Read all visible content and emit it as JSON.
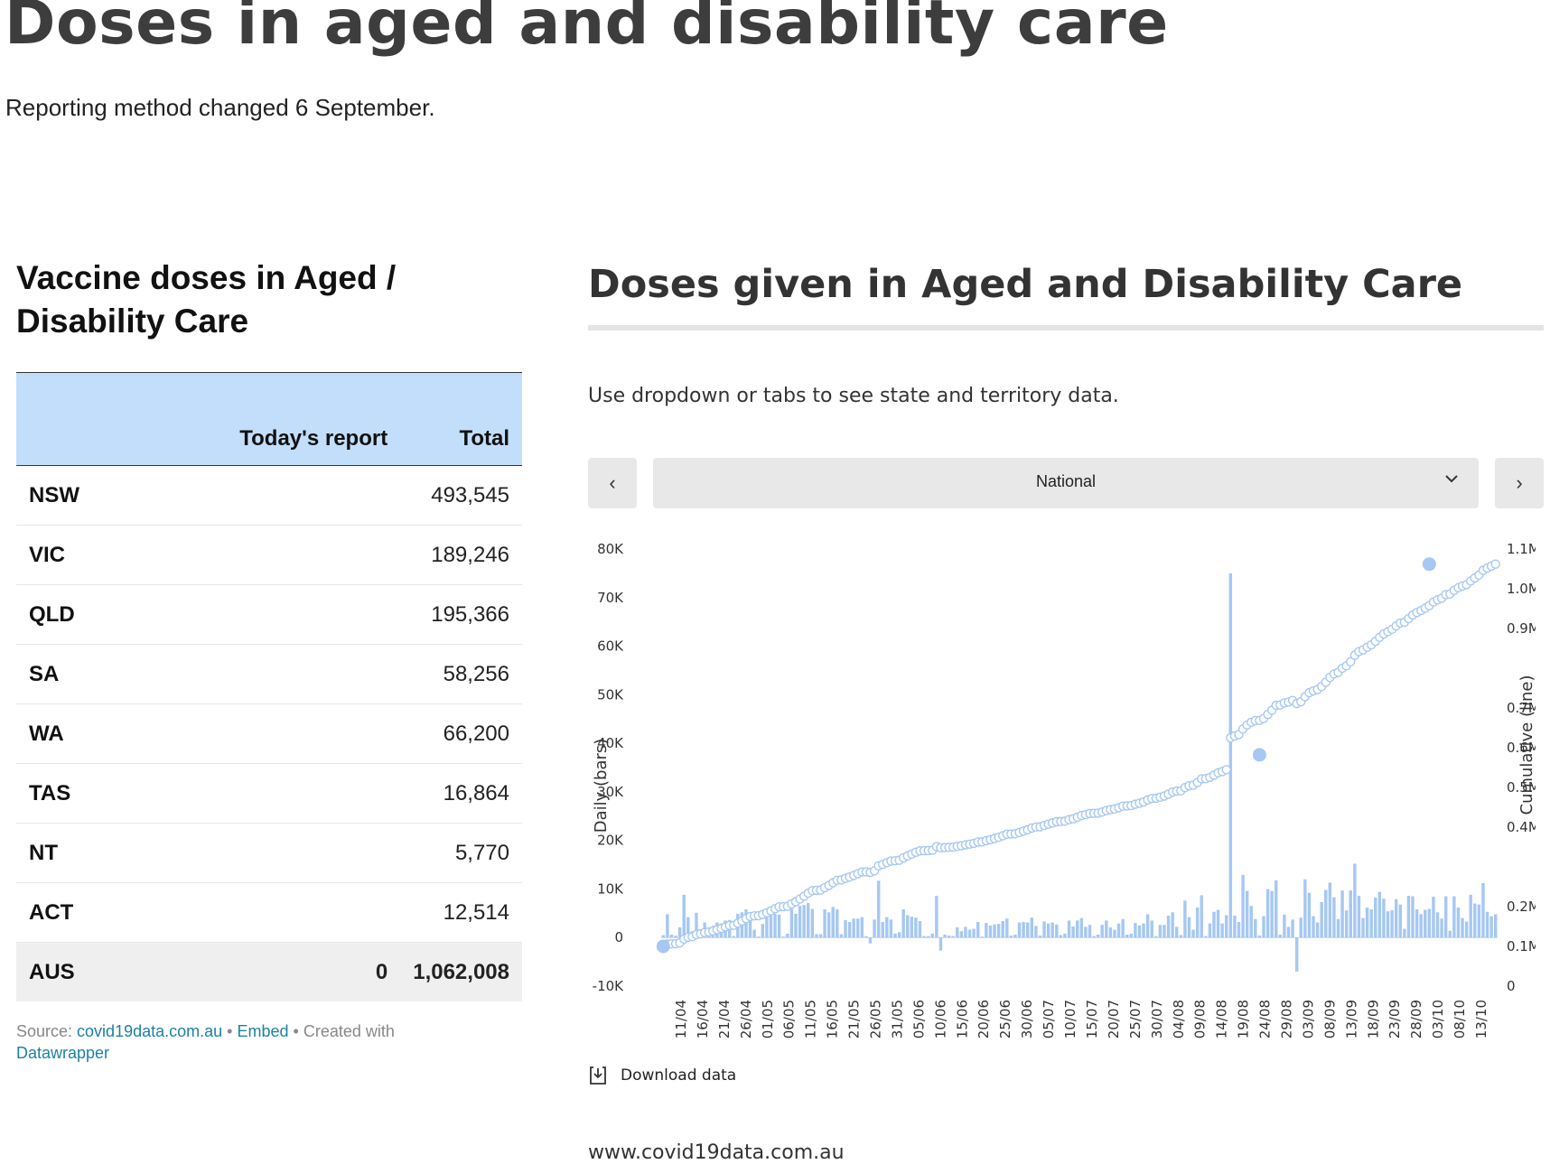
{
  "page": {
    "title": "Doses in aged and disability care",
    "subtitle": "Reporting method changed 6 September."
  },
  "table": {
    "title": "Vaccine doses in Aged / Disability Care",
    "headers": {
      "col1": "",
      "col2": "Today's report",
      "col3": "Total"
    },
    "rows": [
      {
        "state": "NSW",
        "today": "",
        "total": "493,545"
      },
      {
        "state": "VIC",
        "today": "",
        "total": "189,246"
      },
      {
        "state": "QLD",
        "today": "",
        "total": "195,366"
      },
      {
        "state": "SA",
        "today": "",
        "total": "58,256"
      },
      {
        "state": "WA",
        "today": "",
        "total": "66,200"
      },
      {
        "state": "TAS",
        "today": "",
        "total": "16,864"
      },
      {
        "state": "NT",
        "today": "",
        "total": "5,770"
      },
      {
        "state": "ACT",
        "today": "",
        "total": "12,514"
      },
      {
        "state": "AUS",
        "today": "0",
        "total": "1,062,008"
      }
    ],
    "source": {
      "prefix": "Source: ",
      "source_link": "covid19data.com.au",
      "sep1": " • ",
      "embed_link": "Embed",
      "sep2": " • Created with ",
      "tool_link": "Datawrapper"
    }
  },
  "chart": {
    "title": "Doses given in Aged and Disability Care",
    "instructions": "Use dropdown or tabs to see state and territory data.",
    "prev_label": "‹",
    "next_label": "›",
    "selector_value": "National",
    "download_label": "Download data",
    "footer_url": "www.covid19data.com.au"
  },
  "colors": {
    "bar": "#a6c8f2",
    "line_marker": "#a6c8f2",
    "header_bg": "#c3defb",
    "link": "#1d81a2"
  },
  "chart_data": {
    "type": "bar+line",
    "title": "Doses given in Aged and Disability Care",
    "ylabel_left": "Daily (bars)",
    "ylabel_right": "Cumulative (line)",
    "ylim_left": [
      -10000,
      80000
    ],
    "ylim_right": [
      0,
      1100000
    ],
    "left_ticks": [
      {
        "value": 80000,
        "label": "80K"
      },
      {
        "value": 70000,
        "label": "70K"
      },
      {
        "value": 60000,
        "label": "60K"
      },
      {
        "value": 50000,
        "label": "50K"
      },
      {
        "value": 40000,
        "label": "40K"
      },
      {
        "value": 30000,
        "label": "30K"
      },
      {
        "value": 20000,
        "label": "20K"
      },
      {
        "value": 10000,
        "label": "10K"
      },
      {
        "value": 0,
        "label": "0"
      },
      {
        "value": -10000,
        "label": "-10K"
      }
    ],
    "right_ticks": [
      {
        "value": 1100000,
        "label": "1.1M"
      },
      {
        "value": 1000000,
        "label": "1.0M"
      },
      {
        "value": 900000,
        "label": "0.9M"
      },
      {
        "value": 700000,
        "label": "0.7M"
      },
      {
        "value": 600000,
        "label": "0.6M"
      },
      {
        "value": 500000,
        "label": "0.5M"
      },
      {
        "value": 400000,
        "label": "0.4M"
      },
      {
        "value": 200000,
        "label": "0.2M"
      },
      {
        "value": 100000,
        "label": "0.1M"
      },
      {
        "value": 0,
        "label": "0"
      }
    ],
    "x_tick_labels": [
      "11/04",
      "16/04",
      "21/04",
      "26/04",
      "01/05",
      "06/05",
      "11/05",
      "16/05",
      "21/05",
      "26/05",
      "31/05",
      "05/06",
      "10/06",
      "15/06",
      "20/06",
      "25/06",
      "30/06",
      "05/07",
      "10/07",
      "15/07",
      "20/07",
      "25/07",
      "30/07",
      "04/08",
      "09/08",
      "14/08",
      "19/08",
      "24/08",
      "29/08",
      "03/09",
      "08/09",
      "13/09",
      "18/09",
      "23/09",
      "28/09",
      "03/10",
      "08/10",
      "13/10"
    ],
    "series_daily": {
      "name": "Daily",
      "values": [
        500,
        4800,
        600,
        400,
        2100,
        8800,
        4200,
        1300,
        5100,
        1700,
        3100,
        1300,
        2400,
        3100,
        2900,
        3500,
        3600,
        300,
        4900,
        5200,
        5800,
        4800,
        1600,
        200,
        2800,
        4200,
        4500,
        4900,
        4700,
        200,
        800,
        5900,
        4900,
        6500,
        6700,
        7100,
        5900,
        700,
        700,
        5800,
        5200,
        6300,
        5800,
        700,
        3600,
        3200,
        3900,
        3900,
        4200,
        300,
        -1200,
        3700,
        11700,
        3200,
        4200,
        3700,
        800,
        1100,
        5800,
        4600,
        4300,
        4100,
        3400,
        300,
        300,
        800,
        8600,
        -2700,
        600,
        400,
        300,
        2100,
        1300,
        2200,
        1600,
        1800,
        3200,
        200,
        3000,
        2500,
        2700,
        2800,
        3400,
        3900,
        400,
        600,
        3100,
        3200,
        3100,
        4100,
        2400,
        400,
        3300,
        2900,
        3100,
        2700,
        500,
        800,
        3500,
        2300,
        3500,
        4000,
        2200,
        2600,
        300,
        600,
        2600,
        3500,
        2100,
        1600,
        2900,
        3800,
        600,
        800,
        3000,
        2500,
        2900,
        4800,
        3500,
        300,
        2600,
        2600,
        4500,
        5200,
        2200,
        500,
        7600,
        4200,
        1600,
        6200,
        8700,
        300,
        2900,
        5300,
        5700,
        2900,
        4600,
        75000,
        4500,
        3200,
        12900,
        9600,
        6500,
        3800,
        400,
        4400,
        10000,
        9600,
        11800,
        600,
        4700,
        2200,
        3700,
        -7000,
        4100,
        12000,
        9200,
        4400,
        3100,
        7300,
        9800,
        11300,
        8300,
        3800,
        9700,
        5600,
        9700,
        15200,
        8600,
        4000,
        6200,
        5800,
        8200,
        9400,
        8000,
        5400,
        5600,
        7900,
        6800,
        1800,
        8600,
        8500,
        5800,
        4800,
        5700,
        5900,
        8400,
        5200,
        3900,
        8500,
        1400,
        8500,
        6200,
        4000,
        3300,
        8800,
        7000,
        6800,
        11200,
        5300,
        4400,
        4800
      ]
    },
    "series_cumulative": {
      "name": "Cumulative",
      "start": 100000,
      "end": 1062008,
      "highlighted_points": [
        {
          "index": 0,
          "value": 100000
        },
        {
          "index": 144,
          "value": 582000
        },
        {
          "index": 185,
          "value": 1062008
        }
      ]
    }
  }
}
